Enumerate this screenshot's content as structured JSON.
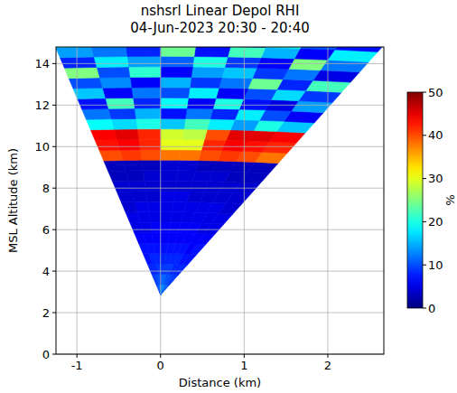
{
  "chart_data": {
    "type": "heatmap",
    "title": "nshsrl Linear Depol RHI",
    "subtitle": "04-Jun-2023 20:30 - 20:40",
    "x_label": "Distance (km)",
    "y_label": "MSL Altitude (km)",
    "xlim": [
      -1.25,
      2.67
    ],
    "ylim": [
      0,
      14.8
    ],
    "xticks": [
      -1,
      0,
      1,
      2
    ],
    "yticks": [
      0,
      2,
      4,
      6,
      8,
      10,
      12,
      14
    ],
    "grid": true,
    "site_distance": 0,
    "site_altitude": 2.85,
    "cells": {
      "elevation_edges": [
        77.5,
        80,
        82,
        84,
        86,
        88,
        90,
        92,
        94,
        96
      ],
      "range_edges": [
        0,
        0.5,
        1,
        1.5,
        2,
        2.5,
        3,
        3.5,
        4,
        4.5,
        5,
        5.5,
        6,
        6.5,
        7,
        7.5,
        8,
        8.5,
        9,
        9.5,
        10,
        10.5,
        11,
        11.5,
        12,
        12.5
      ],
      "values": [
        [
          10,
          9,
          8,
          7,
          7,
          6,
          5,
          5,
          4,
          4,
          4,
          3,
          3,
          38,
          42,
          44,
          16,
          6,
          14,
          9,
          22,
          5,
          12,
          18,
          7
        ],
        [
          11,
          9,
          8,
          7,
          6,
          6,
          5,
          5,
          5,
          4,
          4,
          3,
          3,
          40,
          43,
          45,
          20,
          10,
          5,
          17,
          8,
          12,
          25,
          6,
          10
        ],
        [
          11,
          10,
          8,
          8,
          7,
          6,
          6,
          5,
          5,
          4,
          4,
          4,
          3,
          41,
          44,
          45,
          14,
          18,
          7,
          10,
          24,
          9,
          6,
          15,
          20
        ],
        [
          12,
          10,
          9,
          8,
          7,
          6,
          6,
          5,
          5,
          4,
          4,
          4,
          3,
          40,
          42,
          40,
          18,
          8,
          20,
          6,
          12,
          16,
          9,
          22,
          5
        ],
        [
          13,
          11,
          9,
          8,
          7,
          6,
          6,
          5,
          5,
          5,
          4,
          4,
          4,
          38,
          30,
          28,
          22,
          12,
          6,
          18,
          9,
          14,
          20,
          7,
          12
        ],
        [
          13,
          11,
          9,
          8,
          7,
          6,
          6,
          5,
          5,
          5,
          4,
          4,
          4,
          38,
          30,
          29,
          16,
          7,
          19,
          10,
          15,
          6,
          11,
          24,
          9
        ],
        [
          12,
          10,
          9,
          8,
          7,
          6,
          6,
          5,
          5,
          4,
          4,
          4,
          3,
          40,
          42,
          42,
          20,
          15,
          8,
          12,
          6,
          21,
          14,
          8,
          17
        ],
        [
          11,
          10,
          8,
          8,
          7,
          6,
          5,
          5,
          5,
          4,
          4,
          3,
          3,
          41,
          44,
          45,
          17,
          9,
          22,
          6,
          13,
          10,
          18,
          12,
          6
        ],
        [
          10,
          9,
          8,
          7,
          7,
          6,
          5,
          5,
          4,
          4,
          4,
          3,
          3,
          40,
          43,
          44,
          19,
          12,
          7,
          16,
          10,
          25,
          8,
          14,
          20
        ]
      ]
    },
    "colorbar": {
      "range": [
        0,
        50
      ],
      "ticks": [
        0,
        10,
        20,
        30,
        40,
        50
      ],
      "label": "%"
    }
  }
}
